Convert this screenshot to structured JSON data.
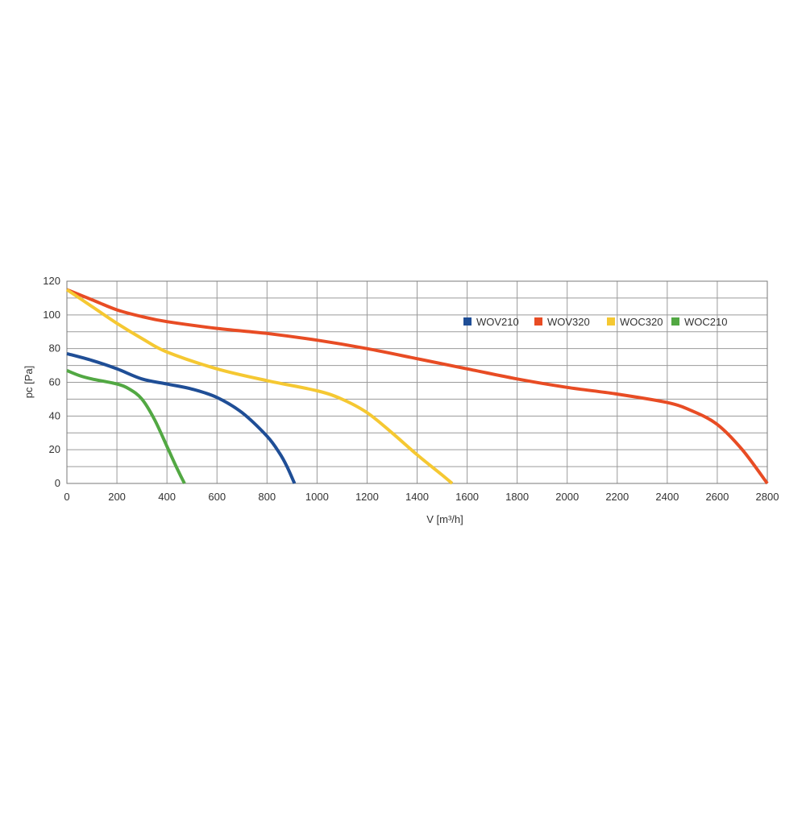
{
  "chart_data": {
    "type": "line",
    "title": "",
    "xlabel": "V [m³/h]",
    "ylabel": "pc [Pa]",
    "xlim": [
      0,
      2800
    ],
    "ylim": [
      0,
      120
    ],
    "x_ticks": [
      "0",
      "200",
      "400",
      "600",
      "800",
      "1000",
      "1200",
      "1400",
      "1600",
      "1800",
      "2000",
      "2200",
      "2400",
      "2600",
      "2800"
    ],
    "y_ticks": [
      "0",
      "20",
      "40",
      "60",
      "80",
      "100",
      "120"
    ],
    "grid": true,
    "legend_position": "top-right",
    "series": [
      {
        "name": "WOV210",
        "color": "#1f4e96",
        "x": [
          0,
          100,
          200,
          300,
          400,
          500,
          600,
          700,
          800,
          850,
          880,
          910
        ],
        "y": [
          77,
          73,
          68,
          62,
          59,
          56,
          51,
          42,
          28,
          18,
          10,
          0
        ]
      },
      {
        "name": "WOV320",
        "color": "#e84c24",
        "x": [
          0,
          100,
          200,
          300,
          400,
          600,
          800,
          1000,
          1200,
          1400,
          1600,
          1800,
          2000,
          2200,
          2400,
          2500,
          2600,
          2700,
          2800
        ],
        "y": [
          115,
          109,
          103,
          99,
          96,
          92,
          89,
          85,
          80,
          74,
          68,
          62,
          57,
          53,
          48,
          43,
          35,
          20,
          0
        ]
      },
      {
        "name": "WOC320",
        "color": "#f5c832",
        "x": [
          0,
          100,
          200,
          300,
          400,
          600,
          800,
          1000,
          1100,
          1200,
          1300,
          1400,
          1500,
          1540
        ],
        "y": [
          115,
          105,
          95,
          86,
          78,
          68,
          61,
          55,
          50,
          42,
          30,
          17,
          5,
          0
        ]
      },
      {
        "name": "WOC210",
        "color": "#52a843",
        "x": [
          0,
          50,
          100,
          200,
          250,
          300,
          350,
          400,
          440,
          470
        ],
        "y": [
          67,
          64,
          62,
          59,
          56,
          50,
          38,
          22,
          9,
          0
        ]
      }
    ]
  }
}
